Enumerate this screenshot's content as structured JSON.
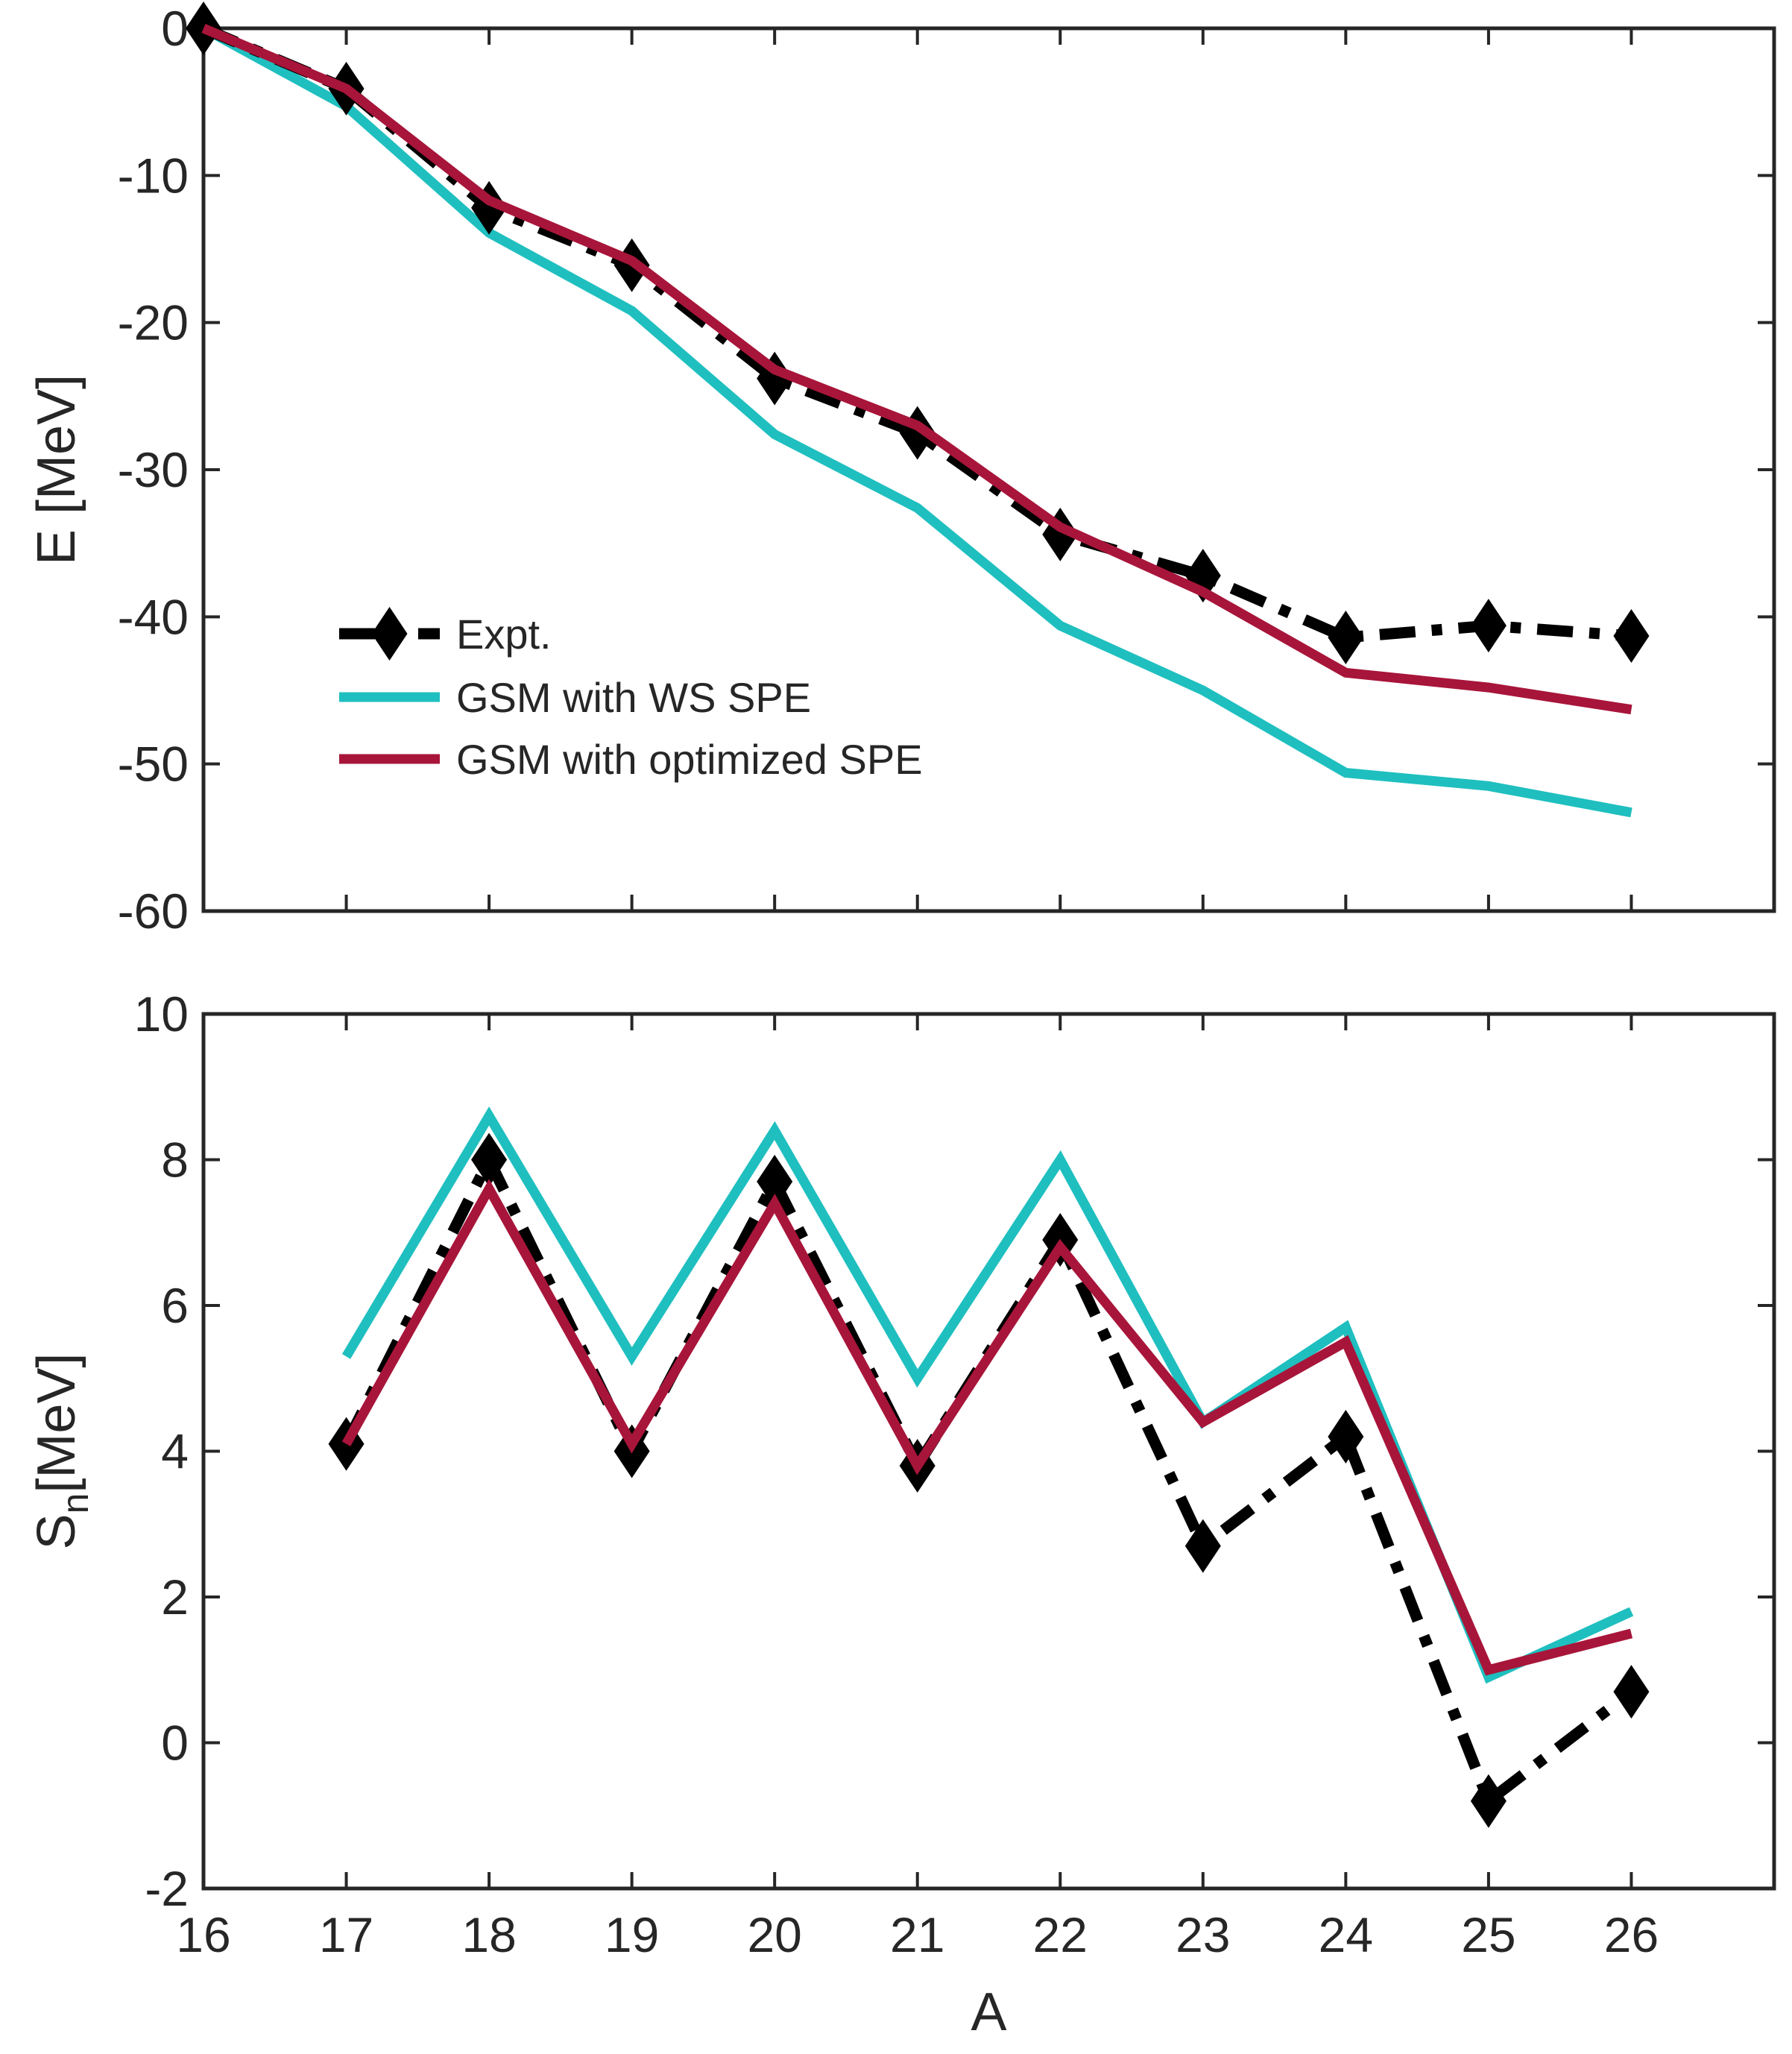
{
  "chart_data": [
    {
      "type": "line",
      "title": "",
      "xlabel": "",
      "ylabel": "E [MeV]",
      "xlim": [
        16,
        27
      ],
      "ylim": [
        -60,
        0
      ],
      "x_ticks": [
        16,
        17,
        18,
        19,
        20,
        21,
        22,
        23,
        24,
        25,
        26
      ],
      "y_ticks": [
        0,
        -10,
        -20,
        -30,
        -40,
        -50,
        -60
      ],
      "grid": false,
      "legend": "center-left",
      "series": [
        {
          "name": "Expt.",
          "color": "#000000",
          "style": "dash-dot with diamond markers",
          "x": [
            16,
            17,
            18,
            19,
            20,
            21,
            22,
            23,
            24,
            25,
            26
          ],
          "y": [
            0,
            -4.1,
            -12.2,
            -16.1,
            -23.8,
            -27.5,
            -34.4,
            -37.2,
            -41.4,
            -40.6,
            -41.3
          ]
        },
        {
          "name": "GSM with WS SPE",
          "color": "#1fbfbf",
          "style": "solid",
          "x": [
            16,
            17,
            18,
            19,
            20,
            21,
            22,
            23,
            24,
            25,
            26
          ],
          "y": [
            0,
            -5.3,
            -13.9,
            -19.2,
            -27.6,
            -32.6,
            -40.6,
            -45.0,
            -50.6,
            -51.5,
            -53.3
          ]
        },
        {
          "name": "GSM with optimized SPE",
          "color": "#a8153a",
          "style": "solid",
          "x": [
            16,
            17,
            18,
            19,
            20,
            21,
            22,
            23,
            24,
            25,
            26
          ],
          "y": [
            0,
            -4.1,
            -11.7,
            -15.8,
            -23.2,
            -27.0,
            -33.9,
            -38.3,
            -43.8,
            -44.8,
            -46.3
          ]
        }
      ]
    },
    {
      "type": "line",
      "title": "",
      "xlabel": "A",
      "ylabel": "S_n [MeV]",
      "ylabel_main": "S",
      "ylabel_sub": "n",
      "ylabel_unit": "[MeV]",
      "xlim": [
        16,
        27
      ],
      "ylim": [
        -2,
        10
      ],
      "x_ticks": [
        16,
        17,
        18,
        19,
        20,
        21,
        22,
        23,
        24,
        25,
        26
      ],
      "y_ticks": [
        10,
        8,
        6,
        4,
        2,
        0,
        -2
      ],
      "grid": false,
      "series": [
        {
          "name": "Expt.",
          "color": "#000000",
          "style": "dash-dot with diamond markers",
          "x": [
            17,
            18,
            19,
            20,
            21,
            22,
            23,
            24,
            25,
            26
          ],
          "y": [
            4.1,
            8.0,
            4.0,
            7.7,
            3.8,
            6.9,
            2.7,
            4.2,
            -0.8,
            0.7
          ]
        },
        {
          "name": "GSM with WS SPE",
          "color": "#1fbfbf",
          "style": "solid",
          "x": [
            17,
            18,
            19,
            20,
            21,
            22,
            23,
            24,
            25,
            26
          ],
          "y": [
            5.3,
            8.6,
            5.3,
            8.4,
            5.0,
            8.0,
            4.4,
            5.7,
            0.9,
            1.8
          ]
        },
        {
          "name": "GSM with optimized SPE",
          "color": "#a8153a",
          "style": "solid",
          "x": [
            17,
            18,
            19,
            20,
            21,
            22,
            23,
            24,
            25,
            26
          ],
          "y": [
            4.1,
            7.6,
            4.1,
            7.4,
            3.8,
            6.8,
            4.4,
            5.5,
            1.0,
            1.5
          ]
        }
      ]
    }
  ]
}
